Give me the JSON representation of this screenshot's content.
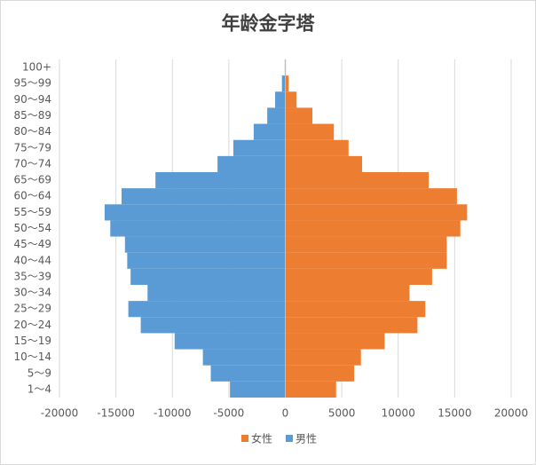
{
  "chart_data": {
    "type": "pyramid",
    "title": "年龄金字塔",
    "categories": [
      "1～4",
      "5～9",
      "10～14",
      "15～19",
      "20～24",
      "25～29",
      "30～34",
      "35～39",
      "40～44",
      "45～49",
      "50～54",
      "55～59",
      "60～64",
      "65～69",
      "70～74",
      "75～79",
      "80～84",
      "85～89",
      "90～94",
      "95～99",
      "100+"
    ],
    "series": [
      {
        "name": "女性",
        "color": "#ed7d31",
        "values": [
          4500,
          6100,
          6700,
          8800,
          11700,
          12400,
          11000,
          13000,
          14300,
          14300,
          15500,
          16100,
          15200,
          12700,
          6800,
          5600,
          4300,
          2400,
          1000,
          300,
          50
        ]
      },
      {
        "name": "男性",
        "color": "#5b9bd5",
        "values": [
          -4900,
          -6600,
          -7300,
          -9800,
          -12800,
          -13900,
          -12200,
          -13700,
          -14000,
          -14200,
          -15500,
          -16000,
          -14500,
          -11500,
          -6000,
          -4600,
          -2800,
          -1600,
          -900,
          -300,
          -50
        ]
      }
    ],
    "xlim": [
      -20000,
      20000
    ],
    "xticks": [
      -20000,
      -15000,
      -10000,
      -5000,
      0,
      5000,
      10000,
      15000,
      20000
    ],
    "grid": true
  }
}
